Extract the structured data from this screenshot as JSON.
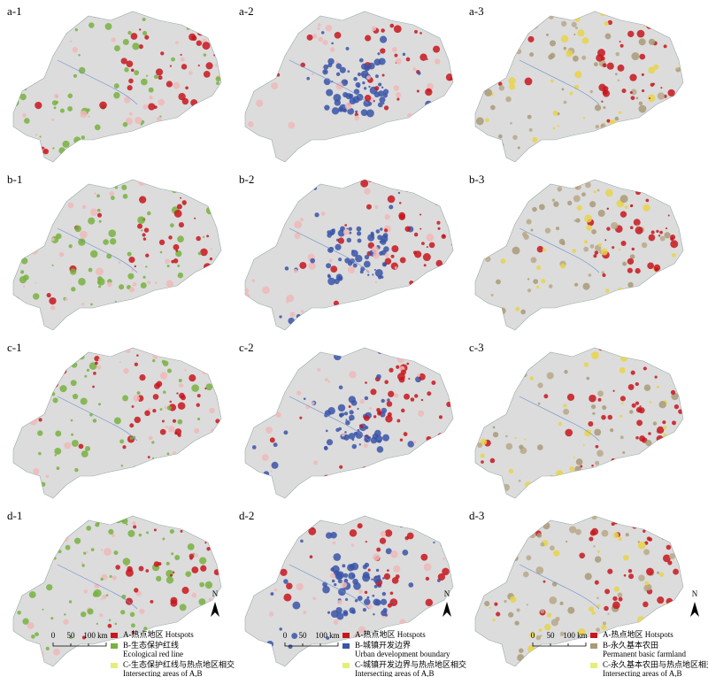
{
  "panels": [
    {
      "label": "a-1"
    },
    {
      "label": "a-2"
    },
    {
      "label": "a-3"
    },
    {
      "label": "b-1"
    },
    {
      "label": "b-2"
    },
    {
      "label": "b-3"
    },
    {
      "label": "c-1"
    },
    {
      "label": "c-2"
    },
    {
      "label": "c-3"
    },
    {
      "label": "d-1"
    },
    {
      "label": "d-2"
    },
    {
      "label": "d-3"
    }
  ],
  "legends": [
    {
      "north": "N",
      "scale": [
        "0",
        "50",
        "100 km"
      ],
      "items": [
        {
          "text": "A-热点地区 Hotspots",
          "color": "#c8161d"
        },
        {
          "text": "B-生态保护红线",
          "subtext": "Ecological red line",
          "color": "#78b13f"
        },
        {
          "text": "C-生态保护红线与热点地区相交",
          "subtext": "Intersecting areas of A,B",
          "color": "#e3ef7a"
        }
      ]
    },
    {
      "north": "N",
      "scale": [
        "0",
        "50",
        "100 km"
      ],
      "items": [
        {
          "text": "A-热点地区 Hotspots",
          "color": "#c8161d"
        },
        {
          "text": "B-城镇开发边界",
          "subtext": "Urban development boundary",
          "color": "#3a55a8"
        },
        {
          "text": "C-城镇开发边界与热点地区相交",
          "subtext": "Intersecting areas of A,B",
          "color": "#e3ef7a"
        }
      ]
    },
    {
      "north": "N",
      "scale": [
        "0",
        "50",
        "100 km"
      ],
      "items": [
        {
          "text": "A-热点地区 Hotspots",
          "color": "#c8161d"
        },
        {
          "text": "B-永久基本农田",
          "subtext": "Permanent basic farmland",
          "color": "#a99a78"
        },
        {
          "text": "C-永久基本农田与热点地区相交",
          "subtext": "Intersecting areas of A,B",
          "color": "#e3ef7a"
        }
      ]
    }
  ]
}
